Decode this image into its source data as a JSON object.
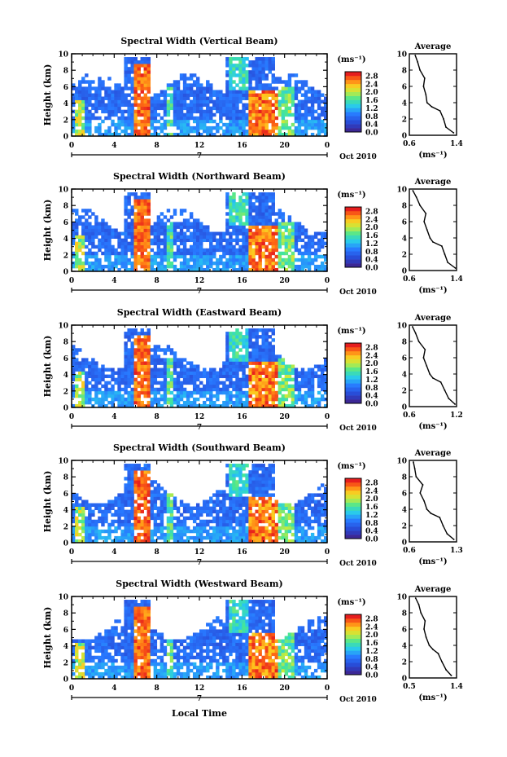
{
  "chart_data": [
    {
      "type": "heatmap",
      "title": "Spectral Width (Vertical Beam)",
      "xlabel": "",
      "ylabel": "Height (km)",
      "x_ticks": [
        "0",
        "4",
        "8",
        "12",
        "16",
        "20",
        "0"
      ],
      "y_ticks": [
        "0",
        "2",
        "4",
        "6",
        "8",
        "10"
      ],
      "xlim": [
        0,
        24
      ],
      "ylim": [
        0,
        10
      ],
      "day_marker": "7",
      "date_label": "Oct 2010",
      "colorbar": {
        "unit": "(ms⁻¹)",
        "ticks": [
          "0.0",
          "0.4",
          "0.8",
          "1.2",
          "1.6",
          "2.0",
          "2.4",
          "2.8"
        ],
        "range": [
          0.0,
          3.0
        ]
      },
      "profile": {
        "title": "Average",
        "xlabel": "(ms⁻¹)",
        "x_ticks": [
          "0.6",
          "1.4"
        ],
        "xlim": [
          0.6,
          1.4
        ],
        "y_ticks": [
          "0",
          "2",
          "4",
          "6",
          "8",
          "10"
        ],
        "ylim": [
          0,
          10
        ],
        "heights": [
          0.3,
          1.0,
          2.0,
          3.0,
          3.5,
          4.0,
          5.0,
          6.0,
          7.0,
          8.0,
          9.0,
          9.8
        ],
        "values": [
          1.35,
          1.22,
          1.18,
          1.12,
          0.98,
          0.9,
          0.88,
          0.84,
          0.86,
          0.78,
          0.74,
          0.7
        ]
      }
    },
    {
      "type": "heatmap",
      "title": "Spectral Width (Northward Beam)",
      "xlabel": "",
      "ylabel": "Height (km)",
      "x_ticks": [
        "0",
        "4",
        "8",
        "12",
        "16",
        "20",
        "0"
      ],
      "y_ticks": [
        "0",
        "2",
        "4",
        "6",
        "8",
        "10"
      ],
      "xlim": [
        0,
        24
      ],
      "ylim": [
        0,
        10
      ],
      "day_marker": "7",
      "date_label": "Oct 2010",
      "colorbar": {
        "unit": "(ms⁻¹)",
        "ticks": [
          "0.0",
          "0.4",
          "0.8",
          "1.2",
          "1.6",
          "2.0",
          "2.4",
          "2.8"
        ],
        "range": [
          0.0,
          3.0
        ]
      },
      "profile": {
        "title": "Average",
        "xlabel": "(ms⁻¹)",
        "x_ticks": [
          "0.6",
          "1.4"
        ],
        "xlim": [
          0.6,
          1.4
        ],
        "y_ticks": [
          "0",
          "2",
          "4",
          "6",
          "8",
          "10"
        ],
        "ylim": [
          0,
          10
        ],
        "heights": [
          0.3,
          1.0,
          2.0,
          3.0,
          3.5,
          4.0,
          5.0,
          6.0,
          7.0,
          8.0,
          9.0,
          9.8
        ],
        "values": [
          1.38,
          1.25,
          1.2,
          1.15,
          1.0,
          0.95,
          0.9,
          0.85,
          0.88,
          0.78,
          0.72,
          0.66
        ]
      }
    },
    {
      "type": "heatmap",
      "title": "Spectral Width (Eastward Beam)",
      "xlabel": "",
      "ylabel": "Height (km)",
      "x_ticks": [
        "0",
        "4",
        "8",
        "12",
        "16",
        "20",
        "0"
      ],
      "y_ticks": [
        "0",
        "2",
        "4",
        "6",
        "8",
        "10"
      ],
      "xlim": [
        0,
        24
      ],
      "ylim": [
        0,
        10
      ],
      "day_marker": "7",
      "date_label": "Oct 2010",
      "colorbar": {
        "unit": "(ms⁻¹)",
        "ticks": [
          "0.0",
          "0.4",
          "0.8",
          "1.2",
          "1.6",
          "2.0",
          "2.4",
          "2.8"
        ],
        "range": [
          0.0,
          3.0
        ]
      },
      "profile": {
        "title": "Average",
        "xlabel": "(ms⁻¹)",
        "x_ticks": [
          "0.6",
          "1.2"
        ],
        "xlim": [
          0.6,
          1.2
        ],
        "y_ticks": [
          "0",
          "2",
          "4",
          "6",
          "8",
          "10"
        ],
        "ylim": [
          0,
          10
        ],
        "heights": [
          0.3,
          1.0,
          2.0,
          3.0,
          3.5,
          4.0,
          5.0,
          6.0,
          7.0,
          8.0,
          9.0,
          9.8
        ],
        "values": [
          1.18,
          1.1,
          1.05,
          1.0,
          0.9,
          0.86,
          0.82,
          0.78,
          0.8,
          0.72,
          0.68,
          0.64
        ]
      }
    },
    {
      "type": "heatmap",
      "title": "Spectral Width (Southward Beam)",
      "xlabel": "",
      "ylabel": "Height (km)",
      "x_ticks": [
        "0",
        "4",
        "8",
        "12",
        "16",
        "20",
        "0"
      ],
      "y_ticks": [
        "0",
        "2",
        "4",
        "6",
        "8",
        "10"
      ],
      "xlim": [
        0,
        24
      ],
      "ylim": [
        0,
        10
      ],
      "day_marker": "7",
      "date_label": "Oct 2010",
      "colorbar": {
        "unit": "(ms⁻¹)",
        "ticks": [
          "0.0",
          "0.4",
          "0.8",
          "1.2",
          "1.6",
          "2.0",
          "2.4",
          "2.8"
        ],
        "range": [
          0.0,
          3.0
        ]
      },
      "profile": {
        "title": "Average",
        "xlabel": "(ms⁻¹)",
        "x_ticks": [
          "0.6",
          "1.3"
        ],
        "xlim": [
          0.6,
          1.3
        ],
        "y_ticks": [
          "0",
          "2",
          "4",
          "6",
          "8",
          "10"
        ],
        "ylim": [
          0,
          10
        ],
        "heights": [
          0.3,
          1.0,
          2.0,
          3.0,
          3.5,
          4.0,
          5.0,
          6.0,
          7.0,
          8.0,
          9.0,
          9.8
        ],
        "values": [
          1.26,
          1.16,
          1.1,
          1.05,
          0.92,
          0.86,
          0.82,
          0.76,
          0.8,
          0.7,
          0.68,
          0.66
        ]
      }
    },
    {
      "type": "heatmap",
      "title": "Spectral Width (Westward Beam)",
      "xlabel": "Local Time",
      "ylabel": "Height (km)",
      "x_ticks": [
        "0",
        "4",
        "8",
        "12",
        "16",
        "20",
        "0"
      ],
      "y_ticks": [
        "0",
        "2",
        "4",
        "6",
        "8",
        "10"
      ],
      "xlim": [
        0,
        24
      ],
      "ylim": [
        0,
        10
      ],
      "day_marker": "7",
      "date_label": "Oct 2010",
      "colorbar": {
        "unit": "(ms⁻¹)",
        "ticks": [
          "0.0",
          "0.4",
          "0.8",
          "1.2",
          "1.6",
          "2.0",
          "2.4",
          "2.8"
        ],
        "range": [
          0.0,
          3.0
        ]
      },
      "profile": {
        "title": "Average",
        "xlabel": "(ms⁻¹)",
        "x_ticks": [
          "0.5",
          "1.4"
        ],
        "xlim": [
          0.5,
          1.4
        ],
        "y_ticks": [
          "0",
          "2",
          "4",
          "6",
          "8",
          "10"
        ],
        "ylim": [
          0,
          10
        ],
        "heights": [
          0.3,
          1.0,
          2.0,
          3.0,
          3.5,
          4.0,
          5.0,
          6.0,
          7.0,
          8.0,
          9.0,
          9.8
        ],
        "values": [
          1.3,
          1.2,
          1.12,
          1.05,
          0.95,
          0.88,
          0.82,
          0.78,
          0.8,
          0.72,
          0.68,
          0.62
        ]
      }
    }
  ]
}
